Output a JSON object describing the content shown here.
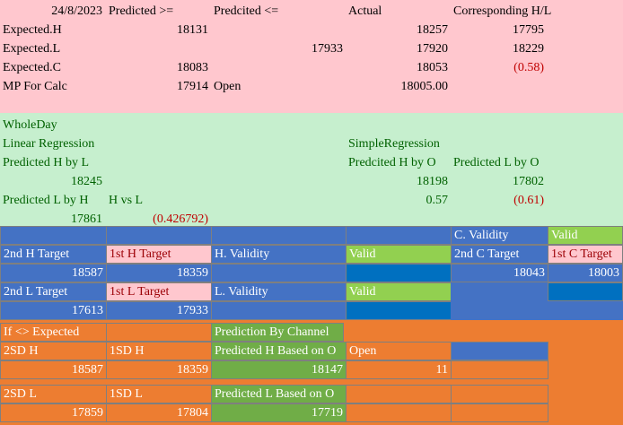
{
  "colors": {
    "pink_bg": "#ffc7ce",
    "light_green_bg": "#c6efce",
    "blue_bg": "#4472c4",
    "dark_blue_bg": "#0070c0",
    "green_bg": "#70ad47",
    "bright_green_bg": "#92d050",
    "orange_bg": "#ed7d31",
    "negative_text": "#c00000",
    "green_text": "#006100"
  },
  "top": {
    "date_header": "24/8/2023",
    "col_predicted_ge": "Predicted >=",
    "col_predicted_le": "Predcited <=",
    "col_actual": "Actual",
    "col_corresponding": "Corresponding H/L",
    "rows": [
      {
        "label": "Expected.H",
        "ge": "18131",
        "le": "",
        "actual": "18257",
        "corr": "17795",
        "corr_negative": false
      },
      {
        "label": "Expected.L",
        "ge": "",
        "le": "17933",
        "actual": "17920",
        "corr": "18229",
        "corr_negative": false
      },
      {
        "label": "Expected.C",
        "ge": "18083",
        "le": "",
        "actual": "18053",
        "corr": "(0.58)",
        "corr_negative": true
      }
    ],
    "mp_label": "MP For Calc",
    "mp_value": "17914",
    "open_label": "Open",
    "open_value": "18005.00"
  },
  "regression": {
    "wholeday": "WholeDay",
    "linear_title": "Linear Regression",
    "pred_h_by_l_label": "Predicted H by L",
    "pred_h_by_l_value": "18245",
    "pred_l_by_h_label": "Predicted L by H",
    "h_vs_l_label": "H vs L",
    "pred_l_by_h_value": "17861",
    "h_vs_l_value": "(0.426792)",
    "simple_title": "SimpleRegression",
    "pred_h_by_o_label": "Predcited H by O",
    "pred_l_by_o_label": "Predicted L by O",
    "pred_h_by_o_value": "18198",
    "pred_l_by_o_value": "17802",
    "h_by_o_coef": "0.57",
    "l_by_o_coef": "(0.61)"
  },
  "targets": {
    "c_validity_label": "C. Validity",
    "c_validity_value": "Valid",
    "second_h_target_label": "2nd H Target",
    "first_h_target_label": "1st H Target",
    "h_validity_label": "H. Validity",
    "h_validity_value": "Valid",
    "second_c_target_label": "2nd C Target",
    "first_c_target_label": "1st C Target",
    "second_h_target_value": "18587",
    "first_h_target_value": "18359",
    "second_c_target_value": "18043",
    "first_c_target_value": "18003",
    "second_l_target_label": "2nd L Target",
    "first_l_target_label": "1st L Target",
    "l_validity_label": "L. Validity",
    "l_validity_value": "Valid",
    "second_l_target_value": "17613",
    "first_l_target_value": "17933"
  },
  "channel": {
    "if_expected_label": "If <> Expected",
    "prediction_by_channel": "Prediction By Channel",
    "sd2_h_label": "2SD H",
    "sd1_h_label": "1SD H",
    "pred_h_based_on_o_label": "Predicted H Based on O",
    "open_label": "Open",
    "sd2_h_value": "18587",
    "sd1_h_value": "18359",
    "pred_h_based_on_o_value": "18147",
    "open_value": "11",
    "sd2_l_label": "2SD L",
    "sd1_l_label": "1SD L",
    "pred_l_based_on_o_label": "Predicted L Based on O",
    "sd2_l_value": "17859",
    "sd1_l_value": "17804",
    "pred_l_based_on_o_value": "17719"
  }
}
